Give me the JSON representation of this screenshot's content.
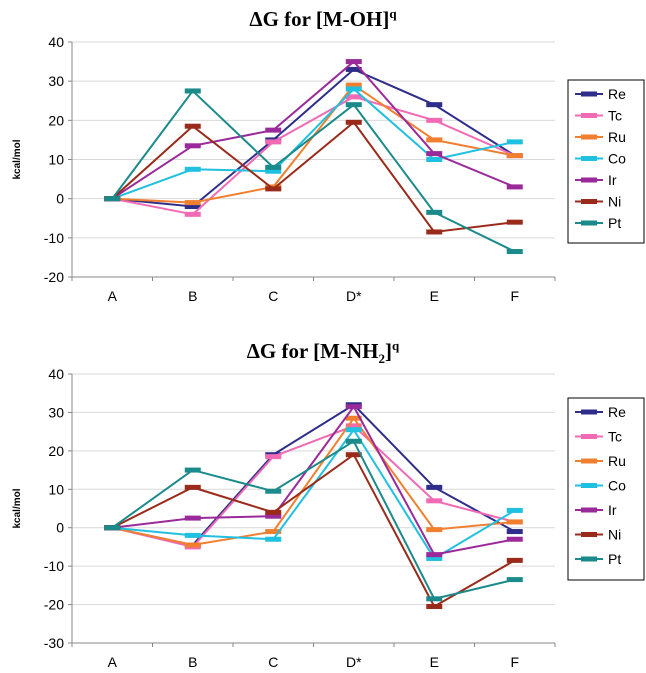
{
  "chart_data": [
    {
      "type": "line",
      "title": "ΔG for [M-OH]",
      "title_sup": "q",
      "ylabel": "kcal/mol",
      "xlabel": "",
      "categories": [
        "A",
        "B",
        "C",
        "D*",
        "E",
        "F"
      ],
      "ylim": [
        -20,
        40
      ],
      "yticks": [
        -20,
        -10,
        0,
        10,
        20,
        30,
        40
      ],
      "grid": true,
      "legend_position": "right",
      "series": [
        {
          "name": "Re",
          "color": "#2e2e8a",
          "values": [
            0,
            -2,
            15,
            33,
            24,
            11
          ]
        },
        {
          "name": "Tc",
          "color": "#f06ab4",
          "values": [
            0,
            -4,
            14.5,
            26,
            20,
            11
          ]
        },
        {
          "name": "Ru",
          "color": "#f08030",
          "values": [
            0,
            -1,
            3,
            29,
            15,
            11
          ]
        },
        {
          "name": "Co",
          "color": "#20c0e0",
          "values": [
            0,
            7.5,
            7,
            28,
            10,
            14.5
          ]
        },
        {
          "name": "Ir",
          "color": "#9a2a9a",
          "values": [
            0,
            13.5,
            17.5,
            35,
            11.5,
            3
          ]
        },
        {
          "name": "Ni",
          "color": "#9a2a1a",
          "values": [
            0,
            18.5,
            2.5,
            19.5,
            -8.5,
            -6
          ]
        },
        {
          "name": "Pt",
          "color": "#1a8a8a",
          "values": [
            0,
            27.5,
            8,
            24,
            -3.5,
            -13.5
          ]
        }
      ]
    },
    {
      "type": "line",
      "title": "ΔG for [M-NH",
      "title_sub": "2",
      "title_after": "]",
      "title_sup": "q",
      "ylabel": "kcal/mol",
      "xlabel": "",
      "categories": [
        "A",
        "B",
        "C",
        "D*",
        "E",
        "F"
      ],
      "ylim": [
        -30,
        40
      ],
      "yticks": [
        -30,
        -20,
        -10,
        0,
        10,
        20,
        30,
        40
      ],
      "grid": true,
      "legend_position": "right",
      "series": [
        {
          "name": "Re",
          "color": "#2e2e8a",
          "values": [
            0,
            -4.5,
            19,
            32,
            10.5,
            -1
          ]
        },
        {
          "name": "Tc",
          "color": "#f06ab4",
          "values": [
            0,
            -5,
            18.5,
            26.5,
            7,
            1.5
          ]
        },
        {
          "name": "Ru",
          "color": "#f08030",
          "values": [
            0,
            -4.5,
            -1,
            28.5,
            -0.5,
            1.5
          ]
        },
        {
          "name": "Co",
          "color": "#20c0e0",
          "values": [
            0,
            -2,
            -3,
            25.5,
            -8,
            4.5
          ]
        },
        {
          "name": "Ir",
          "color": "#9a2a9a",
          "values": [
            0,
            2.5,
            3,
            31.5,
            -7,
            -3
          ]
        },
        {
          "name": "Ni",
          "color": "#9a2a1a",
          "values": [
            0,
            10.5,
            4,
            19,
            -20.5,
            -8.5
          ]
        },
        {
          "name": "Pt",
          "color": "#1a8a8a",
          "values": [
            0,
            15,
            9.5,
            22.5,
            -18.5,
            -13.5
          ]
        }
      ]
    }
  ]
}
